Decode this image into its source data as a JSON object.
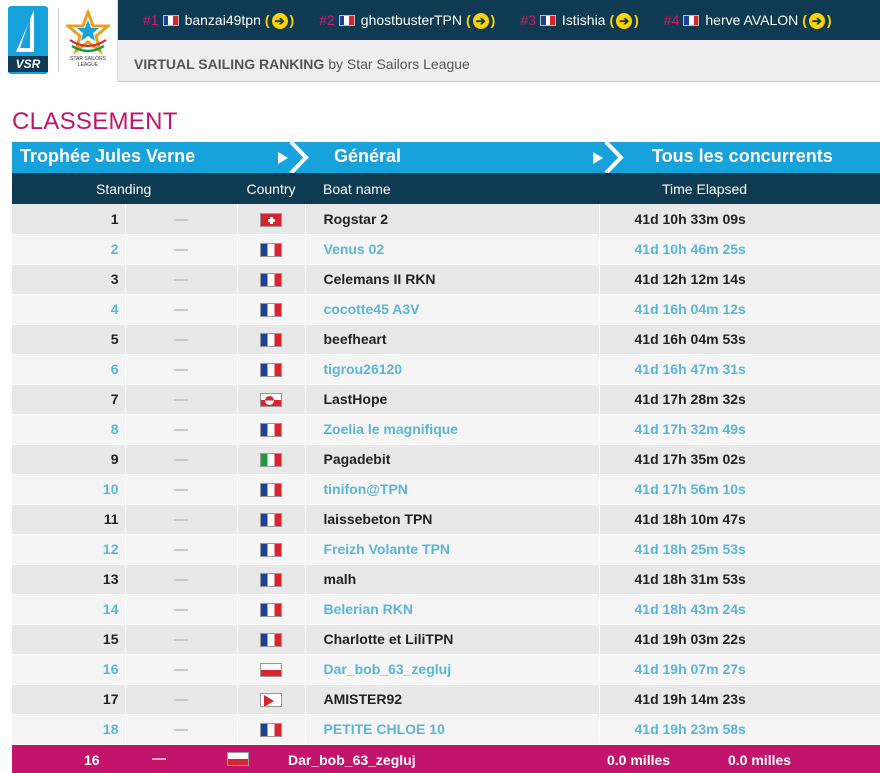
{
  "top_ranking": [
    {
      "rank": "#1",
      "name": "banzai49tpn",
      "country": "fr",
      "arrow": "➔"
    },
    {
      "rank": "#2",
      "name": "ghostbusterTPN",
      "country": "fr",
      "arrow": "➔"
    },
    {
      "rank": "#3",
      "name": "Istishia",
      "country": "fr",
      "arrow": "➔"
    },
    {
      "rank": "#4",
      "name": "herve AVALON",
      "country": "fr",
      "arrow": "➔"
    }
  ],
  "header": {
    "logo_text": "VSR",
    "ssl_logo_text": "STAR SAILORS LEAGUE",
    "title_bold": "VIRTUAL SAILING RANKING",
    "title_rest": " by Star Sailors League"
  },
  "page_title": "CLASSEMENT",
  "breadcrumb": [
    "Trophée Jules Verne",
    "Général",
    "Tous les concurrents"
  ],
  "table": {
    "columns": [
      "Standing",
      "Country",
      "Boat name",
      "Time Elapsed"
    ],
    "rows": [
      {
        "rank": "1",
        "country": "ch",
        "boat": "Rogstar 2",
        "time": "41d 10h 33m 09s"
      },
      {
        "rank": "2",
        "country": "fr",
        "boat": "Venus 02",
        "time": "41d 10h 46m 25s"
      },
      {
        "rank": "3",
        "country": "fr",
        "boat": "Celemans II RKN",
        "time": "41d 12h 12m 14s"
      },
      {
        "rank": "4",
        "country": "fr",
        "boat": "cocotte45 A3V",
        "time": "41d 16h 04m 12s"
      },
      {
        "rank": "5",
        "country": "fr",
        "boat": "beefheart",
        "time": "41d 16h 04m 53s"
      },
      {
        "rank": "6",
        "country": "fr",
        "boat": "tigrou26120",
        "time": "41d 16h 47m 31s"
      },
      {
        "rank": "7",
        "country": "gl",
        "boat": "LastHope",
        "time": "41d 17h 28m 32s"
      },
      {
        "rank": "8",
        "country": "fr",
        "boat": "Zoelia le magnifique",
        "time": "41d 17h 32m 49s"
      },
      {
        "rank": "9",
        "country": "it",
        "boat": "Pagadebit",
        "time": "41d 17h 35m 02s"
      },
      {
        "rank": "10",
        "country": "fr",
        "boat": "tinifon@TPN",
        "time": "41d 17h 56m 10s"
      },
      {
        "rank": "11",
        "country": "fr",
        "boat": "laissebeton TPN",
        "time": "41d 18h 10m 47s"
      },
      {
        "rank": "12",
        "country": "fr",
        "boat": "Freizh Volante TPN",
        "time": "41d 18h 25m 53s"
      },
      {
        "rank": "13",
        "country": "fr",
        "boat": "malh",
        "time": "41d 18h 31m 53s"
      },
      {
        "rank": "14",
        "country": "fr",
        "boat": "Belerian RKN",
        "time": "41d 18h 43m 24s"
      },
      {
        "rank": "15",
        "country": "fr",
        "boat": "Charlotte et LiliTPN",
        "time": "41d 19h 03m 22s"
      },
      {
        "rank": "16",
        "country": "pl",
        "boat": "Dar_bob_63_zegluj",
        "time": "41d 19h 07m 27s"
      },
      {
        "rank": "17",
        "country": "np",
        "boat": "AMISTER92",
        "time": "41d 19h 14m 23s"
      },
      {
        "rank": "18",
        "country": "fr",
        "boat": "PETITE CHLOE 10",
        "time": "41d 19h 23m 58s"
      }
    ]
  },
  "my_boat": {
    "rank": "16",
    "country": "pl",
    "boat": "Dar_bob_63_zegluj",
    "distance_1": "0.0 milles",
    "distance_2": "0.0 milles"
  },
  "colors": {
    "accent_pink": "#c4136b",
    "header_navy": "#0e3a52",
    "breadcrumb_blue": "#17a2dc",
    "link_blue": "#5ab5d8"
  }
}
